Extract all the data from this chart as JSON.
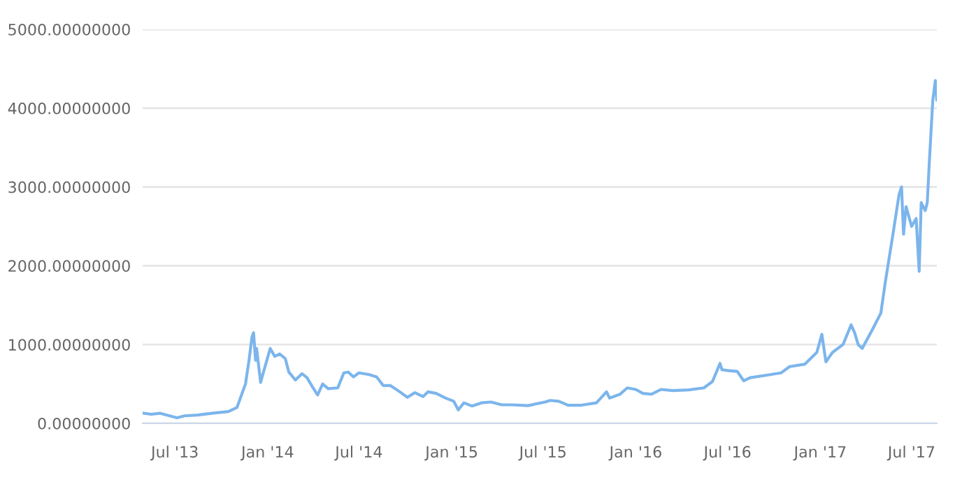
{
  "chart_data": {
    "type": "line",
    "x": [
      "2013-04-28",
      "2013-05-15",
      "2013-06-01",
      "2013-07-05",
      "2013-07-20",
      "2013-08-15",
      "2013-09-15",
      "2013-10-15",
      "2013-11-01",
      "2013-11-18",
      "2013-11-25",
      "2013-12-01",
      "2013-12-04",
      "2013-12-08",
      "2013-12-10",
      "2013-12-18",
      "2013-12-25",
      "2014-01-06",
      "2014-01-15",
      "2014-01-25",
      "2014-02-05",
      "2014-02-12",
      "2014-02-25",
      "2014-03-10",
      "2014-03-20",
      "2014-04-01",
      "2014-04-10",
      "2014-04-20",
      "2014-05-01",
      "2014-05-20",
      "2014-06-01",
      "2014-06-10",
      "2014-06-20",
      "2014-07-01",
      "2014-07-20",
      "2014-08-05",
      "2014-08-18",
      "2014-09-01",
      "2014-09-20",
      "2014-10-05",
      "2014-10-20",
      "2014-11-05",
      "2014-11-15",
      "2014-12-01",
      "2014-12-20",
      "2015-01-05",
      "2015-01-14",
      "2015-01-25",
      "2015-02-10",
      "2015-03-01",
      "2015-03-20",
      "2015-04-10",
      "2015-05-01",
      "2015-06-01",
      "2015-07-05",
      "2015-07-15",
      "2015-08-01",
      "2015-08-20",
      "2015-09-15",
      "2015-10-15",
      "2015-11-04",
      "2015-11-10",
      "2015-12-01",
      "2015-12-15",
      "2016-01-01",
      "2016-01-15",
      "2016-02-01",
      "2016-02-20",
      "2016-03-15",
      "2016-04-15",
      "2016-05-15",
      "2016-06-01",
      "2016-06-16",
      "2016-06-20",
      "2016-07-01",
      "2016-07-20",
      "2016-08-02",
      "2016-08-15",
      "2016-09-15",
      "2016-10-15",
      "2016-11-01",
      "2016-12-01",
      "2016-12-25",
      "2017-01-04",
      "2017-01-12",
      "2017-01-25",
      "2017-02-15",
      "2017-03-03",
      "2017-03-10",
      "2017-03-17",
      "2017-03-25",
      "2017-04-15",
      "2017-05-01",
      "2017-05-10",
      "2017-05-25",
      "2017-06-06",
      "2017-06-11",
      "2017-06-15",
      "2017-06-20",
      "2017-07-01",
      "2017-07-10",
      "2017-07-16",
      "2017-07-20",
      "2017-07-28",
      "2017-08-01",
      "2017-08-05",
      "2017-08-12",
      "2017-08-17",
      "2017-08-20"
    ],
    "series": [
      {
        "color": "#7cb5ec",
        "values": [
          130,
          115,
          128,
          70,
          95,
          105,
          130,
          150,
          200,
          500,
          800,
          1100,
          1150,
          800,
          950,
          520,
          680,
          950,
          850,
          880,
          820,
          650,
          550,
          630,
          580,
          450,
          360,
          500,
          440,
          450,
          640,
          650,
          590,
          640,
          620,
          590,
          480,
          480,
          400,
          330,
          390,
          340,
          400,
          380,
          320,
          280,
          170,
          260,
          220,
          260,
          270,
          235,
          235,
          225,
          270,
          290,
          280,
          230,
          230,
          260,
          400,
          320,
          370,
          450,
          430,
          380,
          370,
          430,
          415,
          425,
          450,
          530,
          760,
          680,
          670,
          660,
          540,
          580,
          610,
          640,
          720,
          750,
          900,
          1130,
          780,
          900,
          1000,
          1250,
          1150,
          1000,
          950,
          1200,
          1400,
          1800,
          2400,
          2900,
          3000,
          2400,
          2750,
          2500,
          2600,
          1930,
          2800,
          2700,
          2800,
          3300,
          4100,
          4350,
          4100
        ]
      }
    ],
    "xlim": [
      "2013-04-28",
      "2017-08-20"
    ],
    "xticks": [
      {
        "value": "2013-07-01",
        "label": "Jul '13"
      },
      {
        "value": "2014-01-01",
        "label": "Jan '14"
      },
      {
        "value": "2014-07-01",
        "label": "Jul '14"
      },
      {
        "value": "2015-01-01",
        "label": "Jan '15"
      },
      {
        "value": "2015-07-01",
        "label": "Jul '15"
      },
      {
        "value": "2016-01-01",
        "label": "Jan '16"
      },
      {
        "value": "2016-07-01",
        "label": "Jul '16"
      },
      {
        "value": "2017-01-01",
        "label": "Jan '17"
      },
      {
        "value": "2017-07-01",
        "label": "Jul '17"
      }
    ],
    "ylim": [
      0,
      5000
    ],
    "yticks": [
      {
        "value": 0,
        "label": "0.00000000"
      },
      {
        "value": 1000,
        "label": "1000.00000000"
      },
      {
        "value": 2000,
        "label": "2000.00000000"
      },
      {
        "value": 3000,
        "label": "3000.00000000"
      },
      {
        "value": 4000,
        "label": "4000.00000000"
      },
      {
        "value": 5000,
        "label": "5000.00000000"
      }
    ],
    "grid": "y",
    "legend": false,
    "marker": "none",
    "line_style": "solid"
  }
}
